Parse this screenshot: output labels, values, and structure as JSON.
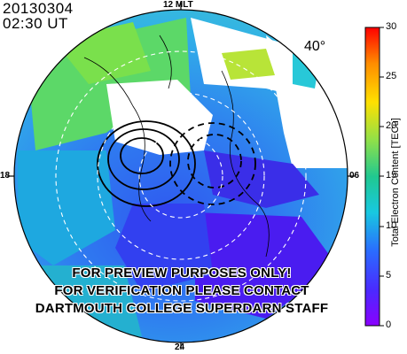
{
  "header": {
    "date": "20130304",
    "time": "02:30 UT"
  },
  "mlt_labels": {
    "top": "12 MLT",
    "left": "18",
    "right": "06",
    "bottom": "24"
  },
  "latitude_label": "40°",
  "colorbar": {
    "label": "Total Electron Content [TECu]",
    "ticks": [
      "30",
      "25",
      "20",
      "15",
      "10",
      "5",
      "0"
    ],
    "min": 0,
    "max": 30
  },
  "watermark": [
    "FOR PREVIEW PURPOSES ONLY!",
    "FOR VERIFICATION PLEASE CONTACT",
    "DARTMOUTH COLLEGE SUPERDARN STAFF"
  ],
  "colors": {
    "low": "#6a00ff",
    "mid_low": "#1e6cff",
    "mid": "#28c8d8",
    "mid_high": "#4cd84c",
    "high": "#ffd800",
    "max": "#ff0000"
  }
}
